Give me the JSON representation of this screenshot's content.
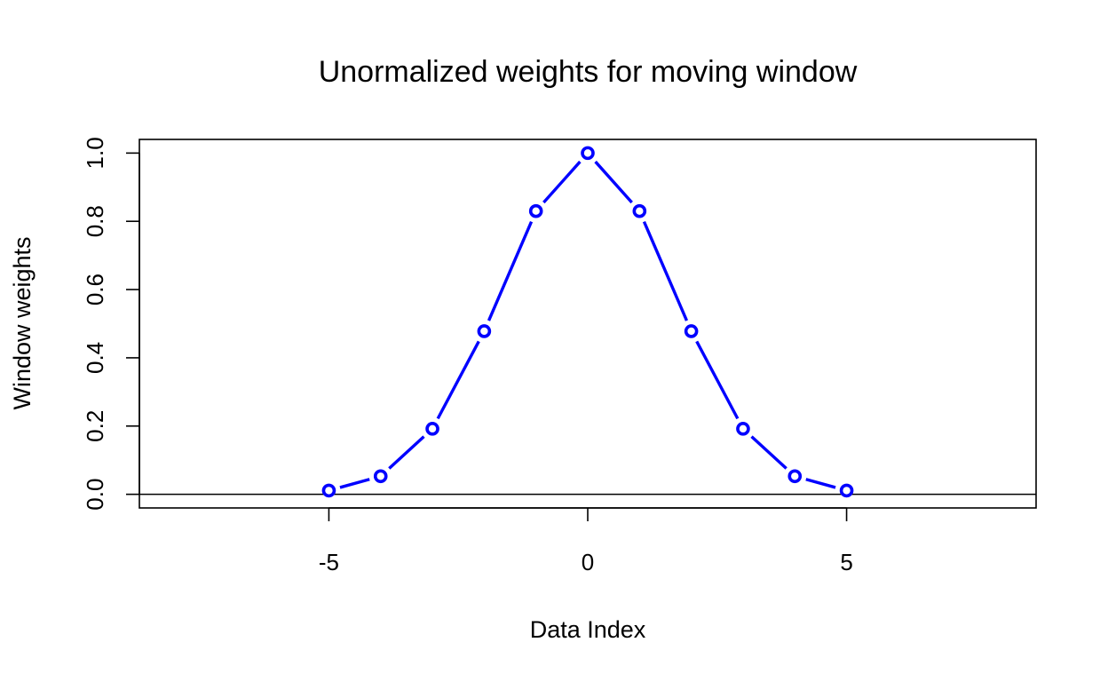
{
  "chart_data": {
    "type": "line",
    "title": "Unormalized weights for moving window",
    "xlabel": "Data Index",
    "ylabel": "Window weights",
    "xlim": [
      -8.66,
      8.66
    ],
    "ylim": [
      -0.04,
      1.04
    ],
    "xticks": [
      -5,
      0,
      5
    ],
    "xtick_labels": [
      "-5",
      "0",
      "5"
    ],
    "yticks": [
      0,
      0.2,
      0.4,
      0.6,
      0.8,
      1.0
    ],
    "ytick_labels": [
      "0.0",
      "0.2",
      "0.4",
      "0.6",
      "0.8",
      "1.0"
    ],
    "grid": false,
    "reference_line_y": 0,
    "series": [
      {
        "color": "#0000ff",
        "marker": "open-circle",
        "x": [
          -5,
          -4,
          -3,
          -2,
          -1,
          0,
          1,
          2,
          3,
          4,
          5
        ],
        "y": [
          0.011,
          0.053,
          0.192,
          0.478,
          0.83,
          1.0,
          0.83,
          0.478,
          0.192,
          0.053,
          0.011
        ]
      }
    ]
  }
}
